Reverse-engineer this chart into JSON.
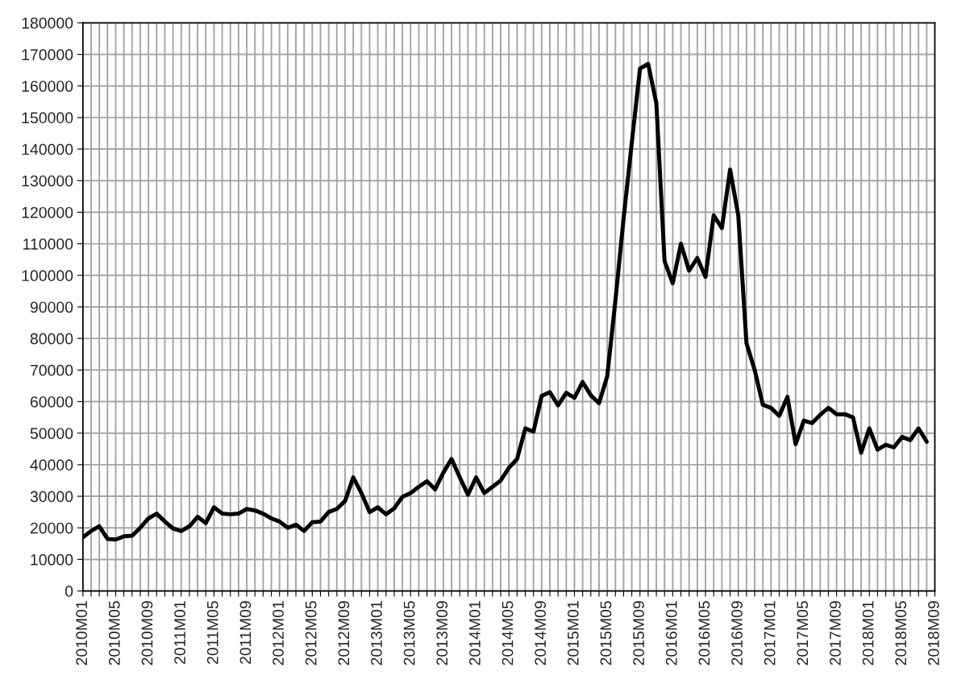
{
  "chart_data": {
    "type": "line",
    "categories": [
      "2010M01",
      null,
      null,
      null,
      "2010M05",
      null,
      null,
      null,
      "2010M09",
      null,
      null,
      null,
      "2011M01",
      null,
      null,
      null,
      "2011M05",
      null,
      null,
      null,
      "2011M09",
      null,
      null,
      null,
      "2012M01",
      null,
      null,
      null,
      "2012M05",
      null,
      null,
      null,
      "2012M09",
      null,
      null,
      null,
      "2013M01",
      null,
      null,
      null,
      "2013M05",
      null,
      null,
      null,
      "2013M09",
      null,
      null,
      null,
      "2014M01",
      null,
      null,
      null,
      "2014M05",
      null,
      null,
      null,
      "2014M09",
      null,
      null,
      null,
      "2015M01",
      null,
      null,
      null,
      "2015M05",
      null,
      null,
      null,
      "2015M09",
      null,
      null,
      null,
      "2016M01",
      null,
      null,
      null,
      "2016M05",
      null,
      null,
      null,
      "2016M09",
      null,
      null,
      null,
      "2017M01",
      null,
      null,
      null,
      "2017M05",
      null,
      null,
      null,
      "2017M09",
      null,
      null,
      null,
      "2018M01",
      null,
      null,
      null,
      "2018M05",
      null,
      null,
      null,
      "2018M09"
    ],
    "series": [
      {
        "color": "#000000",
        "values": [
          17000,
          19000,
          20500,
          16500,
          16300,
          17300,
          17500,
          20000,
          23000,
          24500,
          22000,
          19800,
          19000,
          20500,
          23500,
          21500,
          26500,
          24500,
          24300,
          24500,
          26000,
          25500,
          24500,
          23000,
          22000,
          20000,
          21000,
          19000,
          21800,
          22000,
          25000,
          26000,
          28500,
          36000,
          31000,
          25000,
          26500,
          24300,
          26200,
          29800,
          31000,
          33000,
          34800,
          32200,
          37500,
          41800,
          36000,
          30500,
          36000,
          31000,
          33000,
          35000,
          39000,
          41800,
          51500,
          50500,
          61800,
          63000,
          58800,
          62800,
          61200,
          66200,
          62000,
          59500,
          68000,
          92000,
          118000,
          142000,
          165500,
          167000,
          154500,
          104500,
          97500,
          110000,
          101500,
          105500,
          99500,
          119000,
          115000,
          133500,
          119000,
          78500,
          70000,
          59000,
          58000,
          55500,
          61500,
          46500,
          54000,
          53200,
          55800,
          58000,
          56000,
          56000,
          55000,
          43800,
          51500,
          44800,
          46300,
          45500,
          48800,
          47800,
          51500,
          47300,
          null
        ]
      }
    ],
    "ylim": [
      0,
      180000
    ],
    "yticks": [
      0,
      10000,
      20000,
      30000,
      40000,
      50000,
      60000,
      70000,
      80000,
      90000,
      100000,
      110000,
      120000,
      130000,
      140000,
      150000,
      160000,
      170000,
      180000
    ],
    "grid": true,
    "marker": "none",
    "line_style": "solid"
  }
}
